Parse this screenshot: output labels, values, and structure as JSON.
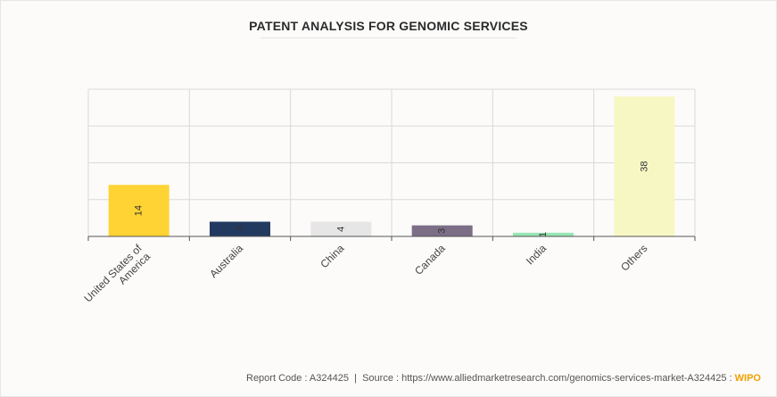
{
  "title": "PATENT ANALYSIS FOR GENOMIC SERVICES",
  "footer": {
    "report": "Report Code : A324425",
    "separator": "|",
    "source": "Source : https://www.alliedmarketresearch.com/genomics-services-market-A324425 :",
    "source_name": "WIPO"
  },
  "chart_data": {
    "type": "bar",
    "title": "PATENT ANALYSIS FOR GENOMIC SERVICES",
    "categories": [
      "United States of America",
      "Australia",
      "China",
      "Canada",
      "India",
      "Others"
    ],
    "category_lines": [
      [
        "United States of",
        "America"
      ],
      [
        "Australia"
      ],
      [
        "China"
      ],
      [
        "Canada"
      ],
      [
        "India"
      ],
      [
        "Others"
      ]
    ],
    "values": [
      14,
      4,
      4,
      3,
      1,
      38
    ],
    "colors": [
      "#ffd333",
      "#233a60",
      "#e6e6e6",
      "#7d6e87",
      "#96e6b3",
      "#f7f7c4"
    ],
    "ylim": [
      0,
      40
    ],
    "grid": true,
    "legend": "none"
  }
}
